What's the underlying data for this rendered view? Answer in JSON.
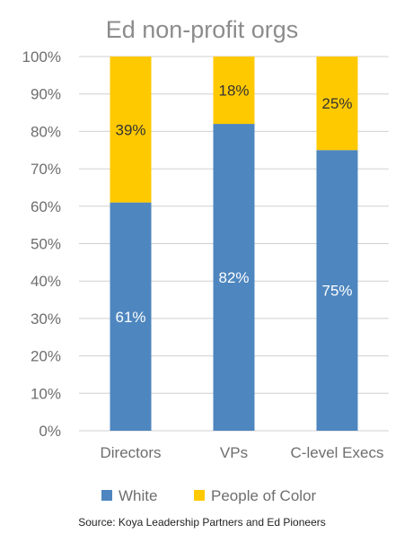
{
  "chart_data": {
    "type": "bar",
    "stacked": true,
    "title": "Ed non-profit orgs",
    "categories": [
      "Directors",
      "VPs",
      "C-level Execs"
    ],
    "series": [
      {
        "name": "White",
        "values": [
          61,
          82,
          75
        ],
        "labels": [
          "61%",
          "82%",
          "75%"
        ],
        "color": "#4e86bf",
        "label_color": "#ffffff"
      },
      {
        "name": "People of Color",
        "values": [
          39,
          18,
          25
        ],
        "labels": [
          "39%",
          "18%",
          "25%"
        ],
        "color": "#ffc900",
        "label_color": "#333333"
      }
    ],
    "y_ticks": [
      "0%",
      "10%",
      "20%",
      "30%",
      "40%",
      "50%",
      "60%",
      "70%",
      "80%",
      "90%",
      "100%"
    ],
    "ylim": [
      0,
      100
    ],
    "grid": true,
    "legend_position": "bottom",
    "source": "Source: Koya Leadership Partners and Ed Pioneers"
  }
}
